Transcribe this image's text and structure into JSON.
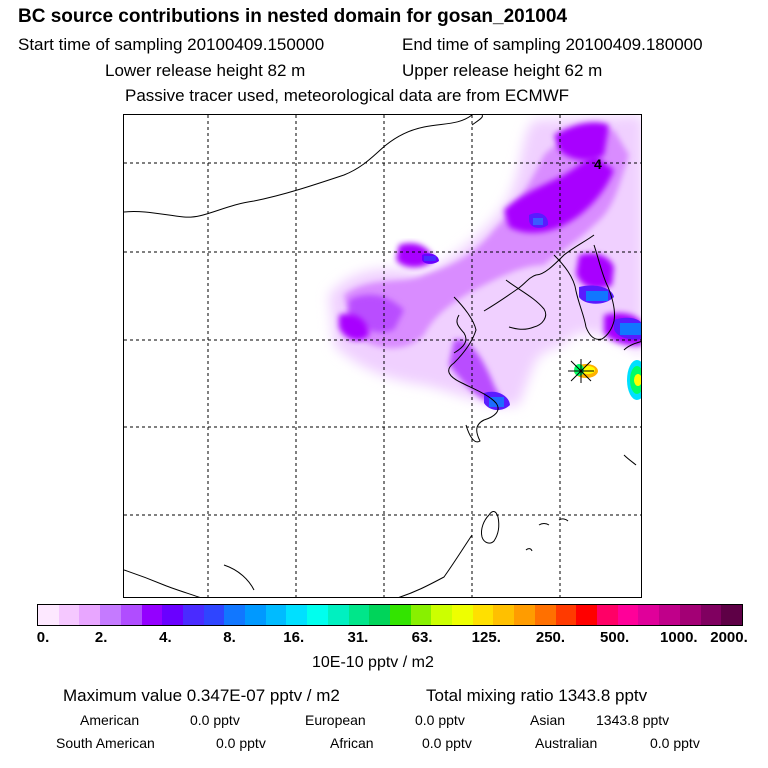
{
  "header": {
    "title": "BC  source contributions in nested domain for gosan_201004",
    "start_label": "Start time of sampling 20100409.150000",
    "end_label": "End time of sampling 20100409.180000",
    "lower_label": "Lower release height   82 m",
    "upper_label": "Upper release height   62 m",
    "tracer_note": "Passive tracer used, meteorological data are from ECMWF"
  },
  "map": {
    "grid_label": "4",
    "colors": {
      "purple": "#a800ff",
      "light_purple": "#e3a8ff",
      "violet": "#c45cff",
      "blue": "#4a2bff",
      "cyan": "#00c8ff",
      "green": "#00ff66",
      "yellow": "#ffff00",
      "orange": "#ff9900",
      "red": "#ff0000"
    }
  },
  "colorbar": {
    "segments": [
      "#fde8ff",
      "#f5c8ff",
      "#e8a6ff",
      "#c57aff",
      "#b04dff",
      "#9400ff",
      "#6a00ff",
      "#4a2bff",
      "#2f45ff",
      "#1177ff",
      "#0099ff",
      "#00bbff",
      "#00e0ff",
      "#00ffee",
      "#00f0c0",
      "#00e68a",
      "#00d45a",
      "#33e400",
      "#88f000",
      "#ccff00",
      "#eeff00",
      "#ffe000",
      "#ffc000",
      "#ff9c00",
      "#ff7000",
      "#ff3a00",
      "#ff0000",
      "#ff0066",
      "#ff0099",
      "#e0009a",
      "#c0008a",
      "#a30075",
      "#800060",
      "#5e0046"
    ],
    "ticks": [
      "0.",
      "2.",
      "4.",
      "8.",
      "16.",
      "31.",
      "63.",
      "125.",
      "250.",
      "500.",
      "1000.",
      "2000."
    ],
    "unit": "10E-10 pptv / m2"
  },
  "summary": {
    "max_value": "Maximum value  0.347E-07 pptv / m2",
    "total": "Total mixing ratio     1343.8 pptv",
    "rows": [
      [
        {
          "label": "American",
          "value": "0.0 pptv"
        },
        {
          "label": "European",
          "value": "0.0 pptv"
        },
        {
          "label": "Asian",
          "value": "1343.8 pptv"
        }
      ],
      [
        {
          "label": "South American",
          "value": "0.0 pptv"
        },
        {
          "label": "African",
          "value": "0.0 pptv"
        },
        {
          "label": "Australian",
          "value": "0.0 pptv"
        }
      ]
    ]
  }
}
